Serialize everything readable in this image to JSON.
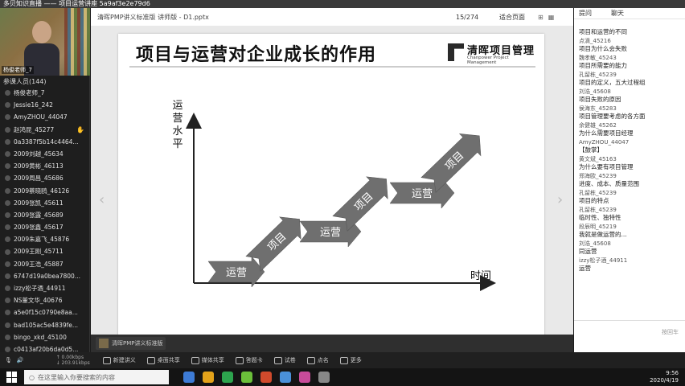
{
  "window": {
    "title": "多贝知识直播 —— 项目运营讲座 5a9af3e2e79d6"
  },
  "left_panel": {
    "video_name": "杨俊老师_7",
    "participants_label": "参课人员(144)",
    "participants": [
      {
        "name": "杨俊老师_7",
        "hand": false
      },
      {
        "name": "Jessie16_242",
        "hand": false
      },
      {
        "name": "AmyZHOU_44047",
        "hand": false
      },
      {
        "name": "赵鸿昆_45277",
        "hand": true
      },
      {
        "name": "0a3387f5b14c4464...",
        "hand": false
      },
      {
        "name": "2009刘越_45634",
        "hand": false
      },
      {
        "name": "2009黄彬_46113",
        "hand": false
      },
      {
        "name": "2009周昌_45686",
        "hand": false
      },
      {
        "name": "2009蔡晓鸥_46126",
        "hand": false
      },
      {
        "name": "2009张凯_45611",
        "hand": false
      },
      {
        "name": "2009张露_45689",
        "hand": false
      },
      {
        "name": "2009张鑫_45617",
        "hand": false
      },
      {
        "name": "2009朱嘉飞_45876",
        "hand": false
      },
      {
        "name": "2009王刚_45711",
        "hand": false
      },
      {
        "name": "2009王浩_45887",
        "hand": false
      },
      {
        "name": "6747d19a0bea7800...",
        "hand": false
      },
      {
        "name": "izzy松子酒_44911",
        "hand": false
      },
      {
        "name": "NS董文华_40676",
        "hand": false
      },
      {
        "name": "a5e0f15c0790e8aa...",
        "hand": false
      },
      {
        "name": "bad105ac5e4839fe...",
        "hand": false
      },
      {
        "name": "bingo_xkd_45100",
        "hand": false
      },
      {
        "name": "c0413af20b6da0d5...",
        "hand": false
      }
    ]
  },
  "doc_bar": {
    "title": "清晖PMP讲义标准版 讲师版 - D1.pptx",
    "page": "15/274",
    "zoom": "适合页面"
  },
  "slide": {
    "title": "项目与运营对企业成长的作用",
    "logo_cn": "清晖项目管理",
    "logo_en": "Chanpower Project Management",
    "y_axis_title": "运营水平",
    "x_axis_title": "时间",
    "arrows": [
      {
        "label": "运营",
        "kind": "flat"
      },
      {
        "label": "项目",
        "kind": "up"
      },
      {
        "label": "运营",
        "kind": "flat"
      },
      {
        "label": "项目",
        "kind": "up"
      },
      {
        "label": "运营",
        "kind": "flat"
      },
      {
        "label": "项目",
        "kind": "up"
      }
    ]
  },
  "subtitle_bar": {
    "presenter": "清晖PMP讲义标准版"
  },
  "chat": {
    "tabs": [
      "提问",
      "聊天"
    ],
    "messages": [
      {
        "who": "",
        "text": "项目和运营的不同"
      },
      {
        "who": "点滴_45216",
        "text": "项目为什么会失败"
      },
      {
        "who": "魏孝敏_45243",
        "text": "项目所需要的能力"
      },
      {
        "who": "孔留栋_45239",
        "text": "项目的定义，五大过程组"
      },
      {
        "who": "刘浩_45608",
        "text": "项目失败的原因"
      },
      {
        "who": "侯海东_45283",
        "text": "项目管理要考虑的各方面"
      },
      {
        "who": "余健雄_45262",
        "text": "为什么需要项目经理"
      },
      {
        "who": "AmyZHOU_44047",
        "text": "【鼓掌】"
      },
      {
        "who": "黄文斌_45163",
        "text": "为什么要有项目管理"
      },
      {
        "who": "郑海欧_45239",
        "text": "进度、成本、质量范围"
      },
      {
        "who": "孔留栋_45239",
        "text": "项目的特点"
      },
      {
        "who": "孔留栋_45239",
        "text": "临时性、独特性"
      },
      {
        "who": "段辰明_45219",
        "text": "我就是做运营的..."
      },
      {
        "who": "刘浩_45608",
        "text": "同运营"
      },
      {
        "who": "izzy松子酒_44911",
        "text": "运营"
      }
    ],
    "input_hint": "按回车"
  },
  "toolbar": {
    "speed_up": "↑ 0.00kbps",
    "speed_down": "↓ 203.91kbps",
    "buttons": [
      "新建讲义",
      "桌面共享",
      "媒体共享",
      "答题卡",
      "试卷",
      "点名",
      "更多"
    ]
  },
  "taskbar": {
    "search_placeholder": "在这里输入你要搜索的内容",
    "time": "9:56",
    "date": "2020/4/19"
  }
}
